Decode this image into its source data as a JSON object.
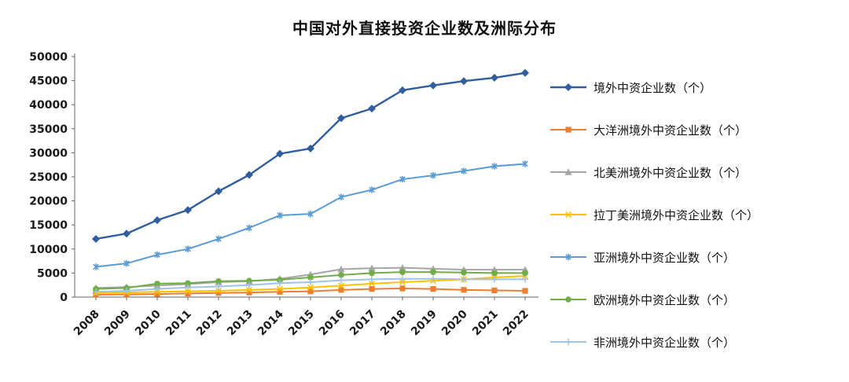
{
  "chart_data": {
    "type": "line",
    "title": "中国对外直接投资企业数及洲际分布",
    "x": [
      2008,
      2009,
      2010,
      2011,
      2012,
      2013,
      2014,
      2015,
      2016,
      2017,
      2018,
      2019,
      2020,
      2021,
      2022
    ],
    "ylim": [
      0,
      50000
    ],
    "ytick_step": 5000,
    "grid": false,
    "legend_position": "right",
    "axis_color": "#666666",
    "series": [
      {
        "name": "境外中资企业数（个）",
        "color": "#2F5D9E",
        "marker": "diamond",
        "line_width": 2.4,
        "values": [
          12100,
          13200,
          16000,
          18100,
          22000,
          25400,
          29800,
          30900,
          37200,
          39200,
          43000,
          44000,
          44900,
          45600,
          46600
        ]
      },
      {
        "name": "大洋洲境外中资企业数（个）",
        "color": "#ED7D31",
        "marker": "square",
        "line_width": 2,
        "values": [
          500,
          550,
          650,
          750,
          850,
          950,
          1100,
          1200,
          1500,
          1700,
          1800,
          1700,
          1500,
          1400,
          1300
        ]
      },
      {
        "name": "北美洲境外中资企业数（个）",
        "color": "#A5A5A5",
        "marker": "triangle",
        "line_width": 2,
        "values": [
          1900,
          2100,
          2400,
          2700,
          3100,
          3300,
          3800,
          4700,
          5800,
          6000,
          6100,
          5900,
          5700,
          5700,
          5700
        ]
      },
      {
        "name": "拉丁美洲境外中资企业数（个）",
        "color": "#FFC000",
        "marker": "x",
        "line_width": 2,
        "values": [
          900,
          950,
          1100,
          1200,
          1300,
          1500,
          1700,
          2000,
          2400,
          2800,
          3100,
          3400,
          3700,
          4100,
          4400
        ]
      },
      {
        "name": "亚洲境外中资企业数（个）",
        "color": "#5B9BD5",
        "marker": "asterisk",
        "line_width": 2,
        "values": [
          6300,
          7000,
          8800,
          10000,
          12100,
          14400,
          17000,
          17300,
          20800,
          22300,
          24500,
          25300,
          26200,
          27200,
          27700
        ]
      },
      {
        "name": "欧洲境外中资企业数（个）",
        "color": "#70AD47",
        "marker": "circle",
        "line_width": 2,
        "values": [
          1700,
          1900,
          2800,
          2900,
          3300,
          3400,
          3600,
          4100,
          4600,
          5000,
          5200,
          5200,
          5100,
          5000,
          5000
        ]
      },
      {
        "name": "非洲境外中资企业数（个）",
        "color": "#9DC3E6",
        "marker": "plus",
        "line_width": 2,
        "values": [
          1100,
          1300,
          1700,
          2000,
          2200,
          2500,
          2900,
          3100,
          3500,
          3700,
          3800,
          3800,
          3700,
          3700,
          3700
        ]
      }
    ]
  }
}
